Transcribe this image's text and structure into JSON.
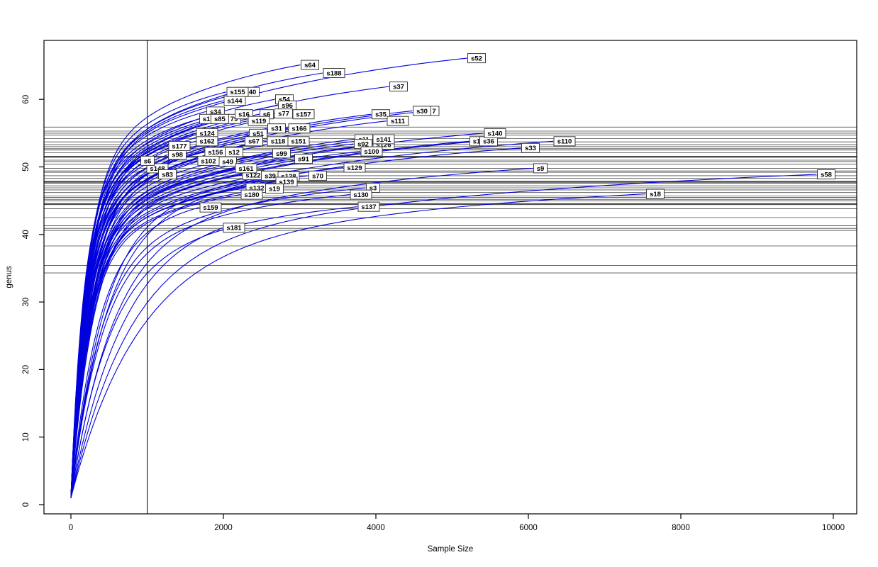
{
  "figure": {
    "background": "#ffffff"
  },
  "chart_data": {
    "type": "line",
    "title": "",
    "xlabel": "Sample Size",
    "ylabel": "genus",
    "x_ticks": [
      0,
      2000,
      4000,
      6000,
      8000,
      10000
    ],
    "y_ticks": [
      0,
      10,
      20,
      30,
      40,
      50,
      60
    ],
    "xlim": [
      -350,
      10300
    ],
    "ylim": [
      -1.4,
      68.7
    ],
    "grid": false,
    "legend": "none",
    "curve_color": "#0000dd",
    "hline_color": "#3a3a3a",
    "vline_x": 1000,
    "hlines": [
      [
        55.9,
        0
      ],
      [
        55.3,
        0
      ],
      [
        55.0,
        0
      ],
      [
        54.7,
        0
      ],
      [
        54.2,
        0
      ],
      [
        53.7,
        0
      ],
      [
        53.3,
        0
      ],
      [
        53.0,
        0
      ],
      [
        52.7,
        0
      ],
      [
        52.5,
        0
      ],
      [
        52.1,
        0
      ],
      [
        51.5,
        1
      ],
      [
        51.0,
        0
      ],
      [
        50.8,
        0
      ],
      [
        50.4,
        0
      ],
      [
        49.8,
        0
      ],
      [
        49.4,
        0
      ],
      [
        49.2,
        0
      ],
      [
        48.7,
        0
      ],
      [
        48.3,
        0
      ],
      [
        47.8,
        1
      ],
      [
        47.6,
        0
      ],
      [
        47.2,
        0
      ],
      [
        46.9,
        0
      ],
      [
        46.6,
        0
      ],
      [
        46.2,
        0
      ],
      [
        45.7,
        0
      ],
      [
        45.5,
        0
      ],
      [
        45.2,
        0
      ],
      [
        45.0,
        0
      ],
      [
        44.5,
        1
      ],
      [
        43.8,
        0
      ],
      [
        42.5,
        0
      ],
      [
        41.3,
        0
      ],
      [
        40.9,
        0
      ],
      [
        40.6,
        0
      ],
      [
        38.3,
        0
      ],
      [
        35.4,
        0
      ],
      [
        34.3,
        0
      ]
    ],
    "series": [
      {
        "label": "s52",
        "x": 5321,
        "y": 66.1,
        "tau": 240
      },
      {
        "label": "s64",
        "x": 3135,
        "y": 65.1,
        "tau": 210
      },
      {
        "label": "s188",
        "x": 3451,
        "y": 63.9,
        "tau": 225
      },
      {
        "label": "s37",
        "x": 4298,
        "y": 61.9,
        "tau": 250
      },
      {
        "label": "s144",
        "x": 2149,
        "y": 59.8,
        "tau": 185
      },
      {
        "label": "40",
        "x": 2381,
        "y": 61.1,
        "tau": 195
      },
      {
        "label": "s155",
        "x": 2186,
        "y": 61.1,
        "tau": 190
      },
      {
        "label": "s54",
        "x": 2800,
        "y": 60.0,
        "tau": 205
      },
      {
        "label": "s96",
        "x": 2837,
        "y": 59.1,
        "tau": 215
      },
      {
        "label": "s34",
        "x": 1897,
        "y": 58.2,
        "tau": 170
      },
      {
        "label": "s1",
        "x": 1777,
        "y": 57.1,
        "tau": 165
      },
      {
        "label": "79",
        "x": 2140,
        "y": 57.1,
        "tau": 175
      },
      {
        "label": "s85",
        "x": 1953,
        "y": 57.1,
        "tau": 160
      },
      {
        "label": "s16",
        "x": 2270,
        "y": 57.8,
        "tau": 180
      },
      {
        "label": "s6",
        "x": 2567,
        "y": 57.8,
        "tau": 185
      },
      {
        "label": "s77",
        "x": 2791,
        "y": 57.9,
        "tau": 200
      },
      {
        "label": "s157",
        "x": 3051,
        "y": 57.8,
        "tau": 210
      },
      {
        "label": "s119",
        "x": 2465,
        "y": 56.8,
        "tau": 190
      },
      {
        "label": "s35",
        "x": 4065,
        "y": 57.8,
        "tau": 260
      },
      {
        "label": "7",
        "x": 4763,
        "y": 58.3,
        "tau": 250
      },
      {
        "label": "s30",
        "x": 4605,
        "y": 58.3,
        "tau": 255
      },
      {
        "label": "s111",
        "x": 4288,
        "y": 56.8,
        "tau": 265
      },
      {
        "label": "s31",
        "x": 2698,
        "y": 55.7,
        "tau": 205
      },
      {
        "label": "s166",
        "x": 2995,
        "y": 55.7,
        "tau": 215
      },
      {
        "label": "s124",
        "x": 1786,
        "y": 55.0,
        "tau": 175
      },
      {
        "label": "s51",
        "x": 2456,
        "y": 54.9,
        "tau": 195
      },
      {
        "label": "s98",
        "x": 1395,
        "y": 51.8,
        "tau": 165
      },
      {
        "label": "s177",
        "x": 1423,
        "y": 53.1,
        "tau": 160
      },
      {
        "label": "s162",
        "x": 1786,
        "y": 53.8,
        "tau": 175
      },
      {
        "label": "s67",
        "x": 2400,
        "y": 53.8,
        "tau": 190
      },
      {
        "label": "s118",
        "x": 2716,
        "y": 53.8,
        "tau": 205
      },
      {
        "label": "s151",
        "x": 2986,
        "y": 53.8,
        "tau": 215
      },
      {
        "label": "s156",
        "x": 1897,
        "y": 52.2,
        "tau": 180
      },
      {
        "label": "s12",
        "x": 2140,
        "y": 52.2,
        "tau": 190
      },
      {
        "label": "s11",
        "x": 3842,
        "y": 54.1,
        "tau": 245
      },
      {
        "label": "s126",
        "x": 4102,
        "y": 53.3,
        "tau": 250
      },
      {
        "label": "s92",
        "x": 3833,
        "y": 53.4,
        "tau": 240
      },
      {
        "label": "s141",
        "x": 4102,
        "y": 54.1,
        "tau": 255
      },
      {
        "label": "s100",
        "x": 3944,
        "y": 52.3,
        "tau": 250
      },
      {
        "label": "s99",
        "x": 2763,
        "y": 52.0,
        "tau": 215
      },
      {
        "label": "s91",
        "x": 3051,
        "y": 51.2,
        "tau": 225
      },
      {
        "label": "s49",
        "x": 2056,
        "y": 50.8,
        "tau": 195
      },
      {
        "label": "s102",
        "x": 1805,
        "y": 50.9,
        "tau": 185
      },
      {
        "label": "s148",
        "x": 1135,
        "y": 49.8,
        "tau": 170
      },
      {
        "label": "s6",
        "x": 1005,
        "y": 50.9,
        "tau": 160
      },
      {
        "label": "s83",
        "x": 1265,
        "y": 48.9,
        "tau": 185
      },
      {
        "label": "s122",
        "x": 2391,
        "y": 48.8,
        "tau": 205
      },
      {
        "label": "s39",
        "x": 2614,
        "y": 48.7,
        "tau": 210
      },
      {
        "label": "s128",
        "x": 2856,
        "y": 48.6,
        "tau": 220
      },
      {
        "label": "s139",
        "x": 2828,
        "y": 47.8,
        "tau": 225
      },
      {
        "label": "s161",
        "x": 2298,
        "y": 49.8,
        "tau": 200
      },
      {
        "label": "s129",
        "x": 3721,
        "y": 49.9,
        "tau": 245
      },
      {
        "label": "s70",
        "x": 3237,
        "y": 48.7,
        "tau": 235
      },
      {
        "label": "s132",
        "x": 2437,
        "y": 46.9,
        "tau": 215
      },
      {
        "label": "s19",
        "x": 2670,
        "y": 46.8,
        "tau": 220
      },
      {
        "label": "s3",
        "x": 3963,
        "y": 46.9,
        "tau": 380
      },
      {
        "label": "s180",
        "x": 2372,
        "y": 45.9,
        "tau": 230
      },
      {
        "label": "s130",
        "x": 3805,
        "y": 45.9,
        "tau": 400
      },
      {
        "label": "s137",
        "x": 3907,
        "y": 44.1,
        "tau": 480
      },
      {
        "label": "s159",
        "x": 1833,
        "y": 44.0,
        "tau": 330
      },
      {
        "label": "s181",
        "x": 2140,
        "y": 41.0,
        "tau": 650
      },
      {
        "label": "s1",
        "x": 5321,
        "y": 53.8,
        "tau": 290
      },
      {
        "label": "s36",
        "x": 5479,
        "y": 53.8,
        "tau": 300
      },
      {
        "label": "s140",
        "x": 5563,
        "y": 55.0,
        "tau": 280
      },
      {
        "label": "s110",
        "x": 6474,
        "y": 53.8,
        "tau": 420
      },
      {
        "label": "s33",
        "x": 6028,
        "y": 52.8,
        "tau": 450
      },
      {
        "label": "s9",
        "x": 6158,
        "y": 49.8,
        "tau": 540
      },
      {
        "label": "s18",
        "x": 7665,
        "y": 46.0,
        "tau": 850
      },
      {
        "label": "s58",
        "x": 9907,
        "y": 48.9,
        "tau": 760
      }
    ]
  }
}
